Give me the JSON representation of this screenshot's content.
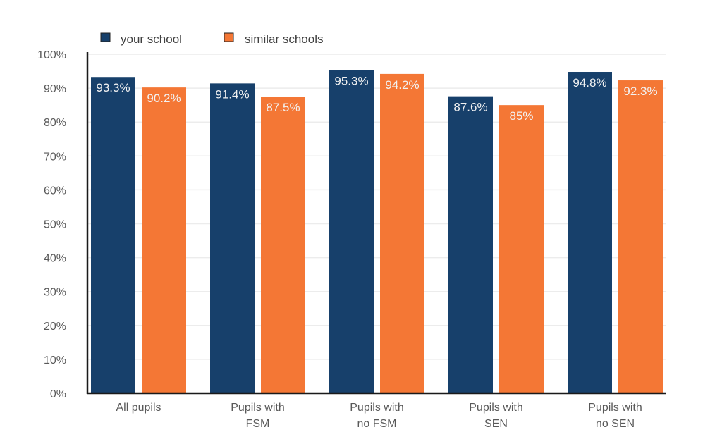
{
  "chart_data": {
    "type": "bar",
    "title": "",
    "xlabel": "",
    "ylabel": "",
    "ylim": [
      0,
      100
    ],
    "y_ticks": [
      "0%",
      "10%",
      "20%",
      "30%",
      "40%",
      "50%",
      "60%",
      "70%",
      "80%",
      "90%",
      "100%"
    ],
    "grid": true,
    "legend_position": "top-left",
    "categories": [
      [
        "All pupils"
      ],
      [
        "Pupils with",
        "FSM"
      ],
      [
        "Pupils with",
        "no FSM"
      ],
      [
        "Pupils with",
        "SEN"
      ],
      [
        "Pupils with",
        "no SEN"
      ]
    ],
    "series": [
      {
        "name": "your school",
        "color": "#17406b",
        "values": [
          93.3,
          91.4,
          95.3,
          87.6,
          94.8
        ],
        "labels": [
          "93.3%",
          "91.4%",
          "95.3%",
          "87.6%",
          "94.8%"
        ]
      },
      {
        "name": "similar schools",
        "color": "#f47735",
        "values": [
          90.2,
          87.5,
          94.2,
          85,
          92.3
        ],
        "labels": [
          "90.2%",
          "87.5%",
          "94.2%",
          "85%",
          "92.3%"
        ]
      }
    ]
  }
}
